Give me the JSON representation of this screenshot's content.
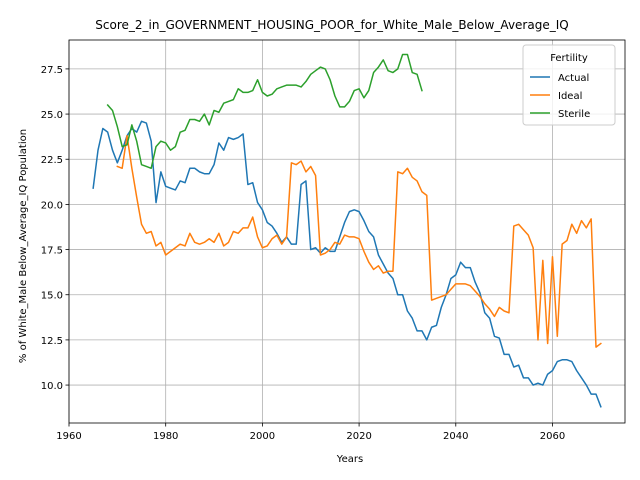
{
  "chart_data": {
    "type": "line",
    "title": "Score_2_in_GOVERNMENT_HOUSING_POOR_for_White_Male_Below_Average_IQ",
    "xlabel": "Years",
    "ylabel": "% of White_Male Below_Average_IQ Population",
    "xlim": [
      1960,
      2075
    ],
    "ylim": [
      7.9,
      29.1
    ],
    "xticks": [
      1960,
      1980,
      2000,
      2020,
      2040,
      2060
    ],
    "yticks": [
      10.0,
      12.5,
      15.0,
      17.5,
      20.0,
      22.5,
      25.0,
      27.5
    ],
    "grid": true,
    "legend": {
      "title": "Fertility",
      "placement": "top-right"
    },
    "series": [
      {
        "name": "Actual",
        "color": "#1f77b4",
        "x": [
          1965,
          1966,
          1967,
          1968,
          1969,
          1970,
          1971,
          1972,
          1973,
          1974,
          1975,
          1976,
          1977,
          1978,
          1979,
          1980,
          1981,
          1982,
          1983,
          1984,
          1985,
          1986,
          1987,
          1988,
          1989,
          1990,
          1991,
          1992,
          1993,
          1994,
          1995,
          1996,
          1997,
          1998,
          1999,
          2000,
          2001,
          2002,
          2003,
          2004,
          2005,
          2006,
          2007,
          2008,
          2009,
          2010,
          2011,
          2012,
          2013,
          2014,
          2015,
          2016,
          2017,
          2018,
          2019,
          2020,
          2021,
          2022,
          2023,
          2024,
          2025,
          2026,
          2027,
          2028,
          2029,
          2030,
          2031,
          2032,
          2033,
          2034,
          2035,
          2036,
          2037,
          2038,
          2039,
          2040,
          2041,
          2042,
          2043,
          2044,
          2045,
          2046,
          2047,
          2048,
          2049,
          2050,
          2051,
          2052,
          2053,
          2054,
          2055,
          2056,
          2057,
          2058,
          2059,
          2060,
          2061,
          2062,
          2063,
          2064,
          2065,
          2066,
          2067,
          2068,
          2069,
          2070
        ],
        "values": [
          20.9,
          23.0,
          24.2,
          24.0,
          23.0,
          22.3,
          23.0,
          23.8,
          24.2,
          24.0,
          24.6,
          24.5,
          23.5,
          20.1,
          21.8,
          21.0,
          20.9,
          20.8,
          21.3,
          21.2,
          22.0,
          22.0,
          21.8,
          21.7,
          21.7,
          22.2,
          23.4,
          23.0,
          23.7,
          23.6,
          23.7,
          23.9,
          21.1,
          21.2,
          20.1,
          19.7,
          19.0,
          18.8,
          18.4,
          17.9,
          18.2,
          17.8,
          17.8,
          21.1,
          21.3,
          17.5,
          17.6,
          17.3,
          17.6,
          17.4,
          17.4,
          18.2,
          19.0,
          19.6,
          19.7,
          19.6,
          19.1,
          18.5,
          18.2,
          17.2,
          16.7,
          16.2,
          15.9,
          15.0,
          15.0,
          14.1,
          13.7,
          13.0,
          13.0,
          12.5,
          13.2,
          13.3,
          14.3,
          15.0,
          15.9,
          16.1,
          16.8,
          16.5,
          16.5,
          15.7,
          15.1,
          14.0,
          13.7,
          12.7,
          12.6,
          11.7,
          11.7,
          11.0,
          11.1,
          10.4,
          10.4,
          10.0,
          10.1,
          10.0,
          10.6,
          10.8,
          11.3,
          11.4,
          11.4,
          11.3,
          10.8,
          10.4,
          10.0,
          9.5,
          9.5,
          8.8
        ]
      },
      {
        "name": "Ideal",
        "color": "#ff7f0e",
        "x": [
          1970,
          1971,
          1972,
          1973,
          1974,
          1975,
          1976,
          1977,
          1978,
          1979,
          1980,
          1981,
          1982,
          1983,
          1984,
          1985,
          1986,
          1987,
          1988,
          1989,
          1990,
          1991,
          1992,
          1993,
          1994,
          1995,
          1996,
          1997,
          1998,
          1999,
          2000,
          2001,
          2002,
          2003,
          2004,
          2005,
          2006,
          2007,
          2008,
          2009,
          2010,
          2011,
          2012,
          2013,
          2014,
          2015,
          2016,
          2017,
          2018,
          2019,
          2020,
          2021,
          2022,
          2023,
          2024,
          2025,
          2026,
          2027,
          2028,
          2029,
          2030,
          2031,
          2032,
          2033,
          2034,
          2035,
          2036,
          2037,
          2038,
          2039,
          2040,
          2041,
          2042,
          2043,
          2044,
          2045,
          2046,
          2047,
          2048,
          2049,
          2050,
          2051,
          2052,
          2053,
          2054,
          2055,
          2056,
          2057,
          2058,
          2059,
          2060,
          2061,
          2062,
          2063,
          2064,
          2065,
          2066,
          2067,
          2068,
          2069,
          2070
        ],
        "values": [
          22.1,
          22.0,
          23.8,
          22.0,
          20.4,
          18.9,
          18.4,
          18.5,
          17.7,
          17.9,
          17.2,
          17.4,
          17.6,
          17.8,
          17.7,
          18.4,
          17.9,
          17.8,
          17.9,
          18.1,
          17.9,
          18.4,
          17.7,
          17.9,
          18.5,
          18.4,
          18.7,
          18.7,
          19.3,
          18.2,
          17.6,
          17.7,
          18.1,
          18.3,
          17.8,
          18.2,
          22.3,
          22.2,
          22.4,
          21.8,
          22.1,
          21.6,
          17.2,
          17.3,
          17.5,
          17.9,
          17.8,
          18.3,
          18.2,
          18.2,
          18.1,
          17.4,
          16.8,
          16.4,
          16.6,
          16.2,
          16.3,
          16.3,
          21.8,
          21.7,
          22.0,
          21.5,
          21.3,
          20.7,
          20.5,
          14.7,
          14.8,
          14.9,
          15.0,
          15.3,
          15.6,
          15.6,
          15.6,
          15.5,
          15.2,
          14.9,
          14.5,
          14.2,
          13.8,
          14.3,
          14.1,
          14.0,
          18.8,
          18.9,
          18.6,
          18.3,
          17.6,
          12.5,
          16.9,
          12.3,
          17.1,
          12.7,
          17.8,
          18.0,
          18.9,
          18.4,
          19.1,
          18.7,
          19.2,
          12.1,
          12.3
        ]
      },
      {
        "name": "Sterile",
        "color": "#2ca02c",
        "x": [
          1968,
          1969,
          1970,
          1971,
          1972,
          1973,
          1974,
          1975,
          1976,
          1977,
          1978,
          1979,
          1980,
          1981,
          1982,
          1983,
          1984,
          1985,
          1986,
          1987,
          1988,
          1989,
          1990,
          1991,
          1992,
          1993,
          1994,
          1995,
          1996,
          1997,
          1998,
          1999,
          2000,
          2001,
          2002,
          2003,
          2004,
          2005,
          2006,
          2007,
          2008,
          2009,
          2010,
          2011,
          2012,
          2013,
          2014,
          2015,
          2016,
          2017,
          2018,
          2019,
          2020,
          2021,
          2022,
          2023,
          2024,
          2025,
          2026,
          2027,
          2028,
          2029,
          2030,
          2031,
          2032,
          2033
        ],
        "values": [
          25.5,
          25.2,
          24.3,
          23.2,
          23.3,
          24.4,
          23.5,
          22.2,
          22.1,
          22.0,
          23.2,
          23.5,
          23.4,
          23.0,
          23.2,
          24.0,
          24.1,
          24.7,
          24.7,
          24.6,
          25.0,
          24.4,
          25.2,
          25.1,
          25.6,
          25.7,
          25.8,
          26.4,
          26.2,
          26.2,
          26.3,
          26.9,
          26.2,
          26.0,
          26.1,
          26.4,
          26.5,
          26.6,
          26.6,
          26.6,
          26.5,
          26.8,
          27.2,
          27.4,
          27.6,
          27.5,
          26.9,
          26.0,
          25.4,
          25.4,
          25.7,
          26.3,
          26.4,
          25.9,
          26.3,
          27.3,
          27.6,
          28.0,
          27.4,
          27.3,
          27.5,
          28.3,
          28.3,
          27.3,
          27.2,
          26.3
        ]
      }
    ]
  }
}
